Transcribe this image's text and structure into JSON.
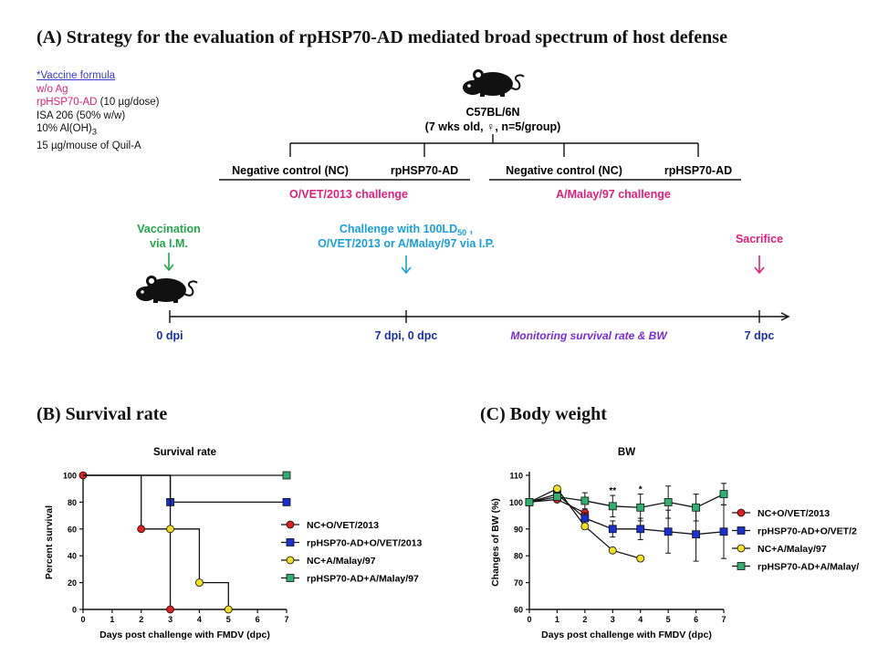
{
  "panel_a": {
    "title": "(A) Strategy for the evaluation of rpHSP70-AD mediated broad spectrum of host defense",
    "vaccine_formula": {
      "heading": "*Vaccine formula",
      "line1": "w/o Ag",
      "line2_pink": "rpHSP70-AD",
      "line2_rest": " (10 µg/dose)",
      "line3": "ISA 206 (50% w/w)",
      "line4": "10% Al(OH)",
      "line4_sub": "3",
      "line5": "15 µg/mouse of Quil-A"
    },
    "mouse_strain": "C57BL/6N",
    "mouse_info": "(7 wks old, ♀, n=5/group)",
    "groups": [
      "Negative control (NC)",
      "rpHSP70-AD",
      "Negative control (NC)",
      "rpHSP70-AD"
    ],
    "challenge_labels": [
      "O/VET/2013 challenge",
      "A/Malay/97  challenge"
    ],
    "vaccination_label": [
      "Vaccination",
      "via I.M."
    ],
    "challenge_event": {
      "line1": "Challenge with 100LD",
      "line1_sub": "50",
      "line1_end": " ,",
      "line2": "O/VET/2013 or A/Malay/97  via I.P."
    },
    "sacrifice_label": "Sacrifice",
    "timeline": [
      "0 dpi",
      "7 dpi, 0 dpc",
      "Monitoring survival rate & BW",
      "7 dpc"
    ],
    "colors": {
      "pink": "#e0207a",
      "green": "#22a84a",
      "cyan": "#1aa0d8",
      "navy": "#1a2fb0",
      "purple": "#7a2be0"
    }
  },
  "panel_b": {
    "title": "(B) Survival rate"
  },
  "panel_c": {
    "title": "(C) Body weight"
  },
  "chart_data": [
    {
      "type": "line",
      "title": "Survival rate",
      "xlabel": "Days post challenge with FMDV (dpc)",
      "ylabel": "Percent survival",
      "xlim": [
        0,
        7
      ],
      "ylim": [
        0,
        100
      ],
      "xticks": [
        0,
        1,
        2,
        3,
        4,
        5,
        6,
        7
      ],
      "yticks": [
        0,
        20,
        40,
        60,
        80,
        100
      ],
      "step": true,
      "legend": "right",
      "series": [
        {
          "name": "NC+O/VET/2013",
          "color": "#e02020",
          "marker": "circle",
          "x": [
            0,
            2,
            3
          ],
          "y": [
            100,
            60,
            0
          ]
        },
        {
          "name": "rpHSP70-AD+O/VET/2013",
          "color": "#1a2fd0",
          "marker": "square",
          "x": [
            0,
            3,
            7
          ],
          "y": [
            100,
            80,
            80
          ]
        },
        {
          "name": "NC+A/Malay/97",
          "color": "#f0e020",
          "marker": "circle",
          "x": [
            0,
            3,
            4,
            5
          ],
          "y": [
            100,
            60,
            20,
            0
          ]
        },
        {
          "name": "rpHSP70-AD+A/Malay/97",
          "color": "#30b070",
          "marker": "square",
          "x": [
            0,
            7
          ],
          "y": [
            100,
            100
          ]
        }
      ]
    },
    {
      "type": "line",
      "title": "BW",
      "xlabel": "Days post challenge with FMDV (dpc)",
      "ylabel": "Changes of BW (%)",
      "xlim": [
        0,
        7
      ],
      "ylim": [
        60,
        110
      ],
      "xticks": [
        0,
        1,
        2,
        3,
        4,
        5,
        6,
        7
      ],
      "yticks": [
        60,
        70,
        80,
        90,
        100,
        110
      ],
      "legend": "right",
      "annotations": [
        {
          "x": 3,
          "text": "**"
        },
        {
          "x": 4,
          "text": "*"
        }
      ],
      "series": [
        {
          "name": "NC+O/VET/2013",
          "color": "#e02020",
          "marker": "circle",
          "x": [
            0,
            1,
            2
          ],
          "y": [
            100,
            101,
            96
          ],
          "err": [
            0,
            1,
            1
          ]
        },
        {
          "name": "rpHSP70-AD+O/VET/2",
          "color": "#1a2fd0",
          "marker": "square",
          "x": [
            0,
            1,
            2,
            3,
            4,
            5,
            6,
            7
          ],
          "y": [
            100,
            103,
            94,
            90,
            90,
            89,
            88,
            89
          ],
          "err": [
            0,
            1,
            2,
            3,
            4,
            8,
            10,
            10
          ]
        },
        {
          "name": "NC+A/Malay/97",
          "color": "#f0e020",
          "marker": "circle",
          "x": [
            0,
            1,
            2,
            3,
            4
          ],
          "y": [
            100,
            105,
            91,
            82,
            79
          ],
          "err": [
            0,
            1,
            1,
            1,
            1
          ]
        },
        {
          "name": "rpHSP70-AD+A/Malay/",
          "color": "#30b070",
          "marker": "square",
          "x": [
            0,
            1,
            2,
            3,
            4,
            5,
            6,
            7
          ],
          "y": [
            100,
            102,
            100.5,
            98.5,
            98,
            100,
            98,
            103
          ],
          "err": [
            0,
            1,
            3,
            4,
            5,
            6,
            5,
            4
          ]
        }
      ]
    }
  ]
}
